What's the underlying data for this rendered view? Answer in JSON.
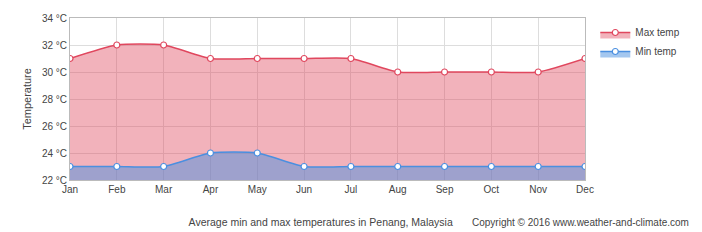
{
  "chart_data": {
    "type": "area",
    "title": "Average min and max temperatures in Penang, Malaysia",
    "annotations": [
      "Copyright © 2016 www.weather-and-climate.com"
    ],
    "y_label": "Temperature",
    "categories": [
      "Jan",
      "Feb",
      "Mar",
      "Apr",
      "May",
      "Jun",
      "Jul",
      "Aug",
      "Sep",
      "Oct",
      "Nov",
      "Dec"
    ],
    "series": [
      {
        "name": "Max temp",
        "color": "#e0475e",
        "values": [
          31,
          32,
          32,
          31,
          31,
          31,
          31,
          30,
          30,
          30,
          30,
          31
        ]
      },
      {
        "name": "Min temp",
        "color": "#4a8fe0",
        "values": [
          23,
          23,
          23,
          24,
          24,
          23,
          23,
          23,
          23,
          23,
          23,
          23
        ]
      }
    ],
    "ylim": [
      22,
      34
    ],
    "yticks": [
      {
        "value": 22,
        "label": "22 °C"
      },
      {
        "value": 24,
        "label": "24 °C"
      },
      {
        "value": 26,
        "label": "26 °C"
      },
      {
        "value": 28,
        "label": "28 °C"
      },
      {
        "value": 30,
        "label": "30 °C"
      },
      {
        "value": 32,
        "label": "32 °C"
      },
      {
        "value": 34,
        "label": "34 °C"
      }
    ],
    "grid": true,
    "legend": "top-right",
    "marker": "circle",
    "line_style": "solid"
  }
}
